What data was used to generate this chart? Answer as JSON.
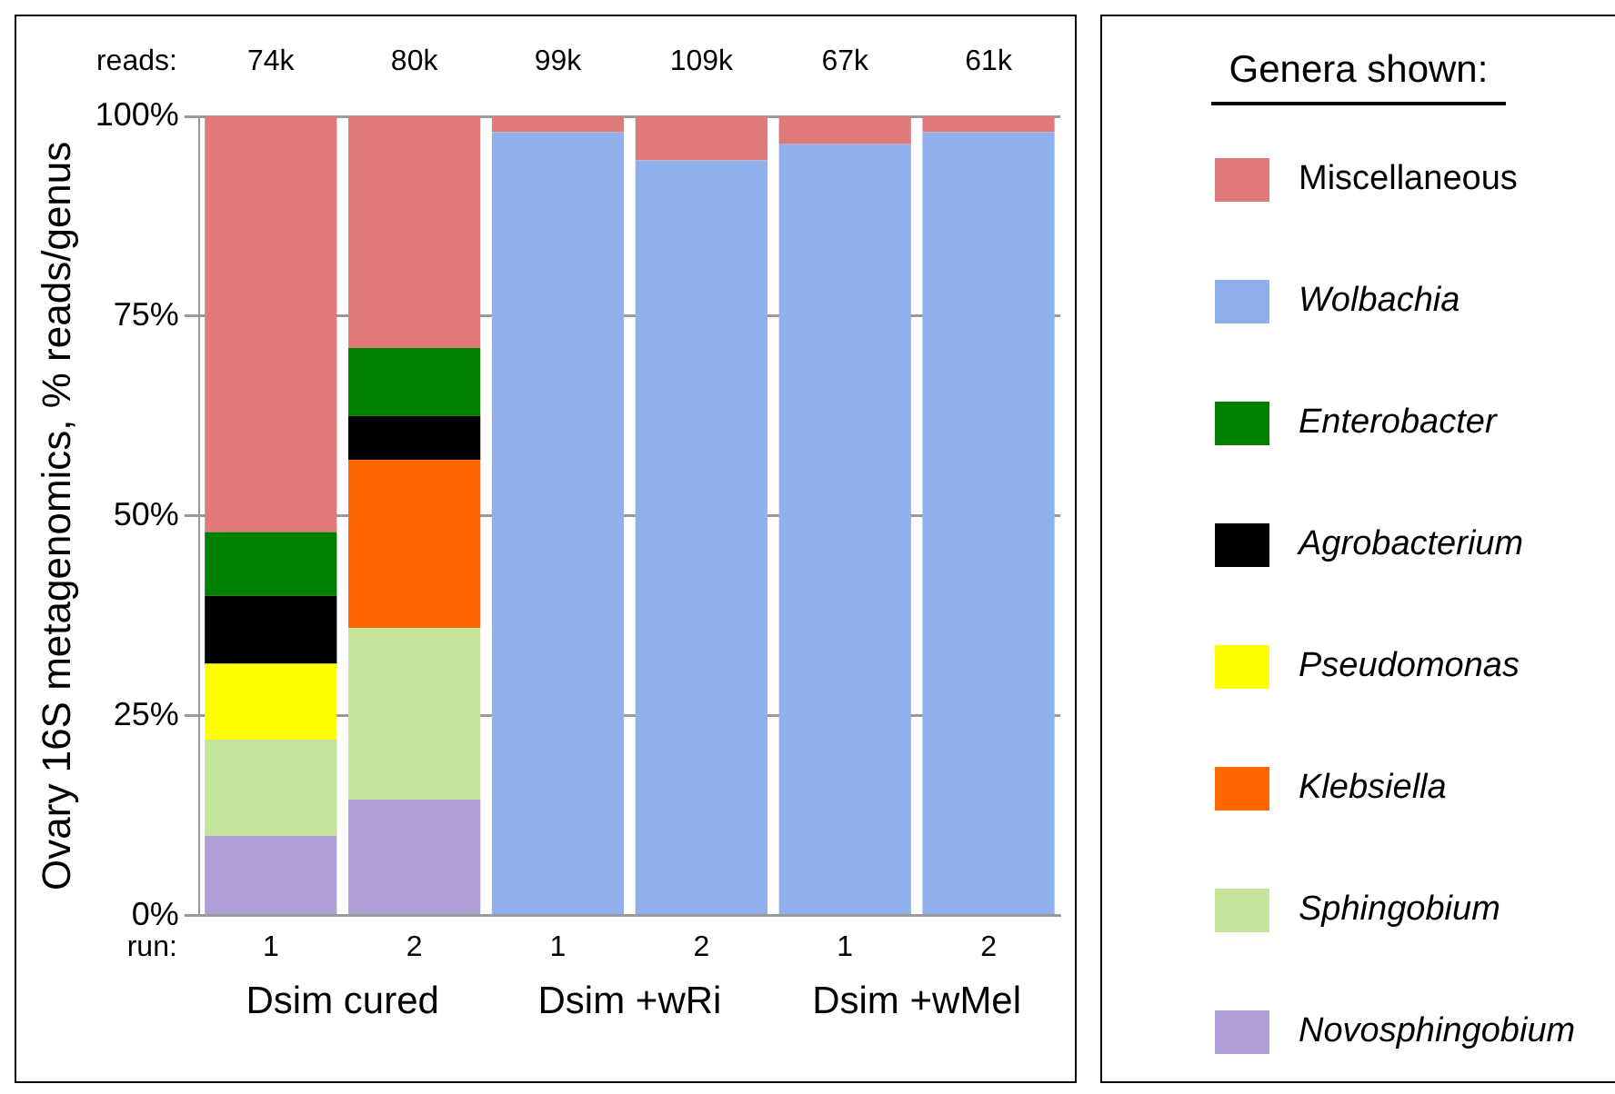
{
  "chart_data": {
    "type": "bar",
    "stacked": true,
    "ylabel": "Ovary 16S metagenomics, % reads/genus",
    "legend_title": "Genera shown:",
    "legend": "right",
    "grid": "y",
    "categories": [
      "1",
      "2",
      "1",
      "2",
      "1",
      "2"
    ],
    "series": [
      {
        "name": "Novosphingobium",
        "color": "#b09fd6",
        "values": [
          10,
          14.5,
          null,
          null,
          null,
          null
        ]
      },
      {
        "name": "Sphingobium",
        "color": "#c5e59a",
        "values": [
          12,
          21.5,
          null,
          null,
          null,
          null
        ]
      },
      {
        "name": "Klebsiella",
        "color": "#ff6600",
        "values": [
          null,
          21,
          null,
          null,
          null,
          null
        ]
      },
      {
        "name": "Pseudomonas",
        "color": "#ffff00",
        "values": [
          9.5,
          null,
          null,
          null,
          null,
          null
        ]
      },
      {
        "name": "Agrobacterium",
        "color": "#000000",
        "values": [
          8.5,
          5.5,
          null,
          null,
          null,
          null
        ]
      },
      {
        "name": "Enterobacter",
        "color": "#008000",
        "values": [
          8,
          8.5,
          null,
          null,
          null,
          null
        ]
      },
      {
        "name": "Wolbachia",
        "color": "#8fb0ea",
        "values": [
          null,
          null,
          98,
          94.5,
          96.5,
          98
        ]
      },
      {
        "name": "Miscellaneous",
        "color": "#e07a7a",
        "values": [
          52,
          29,
          2,
          5.5,
          3.5,
          2
        ]
      }
    ],
    "ylim": [
      0,
      100
    ],
    "yticks": [
      {
        "value": 0,
        "label": "0%"
      },
      {
        "value": 25,
        "label": "25%"
      },
      {
        "value": 50,
        "label": "50%"
      },
      {
        "value": 75,
        "label": "75%"
      },
      {
        "value": 100,
        "label": "100%"
      }
    ],
    "annotations": [
      "reads:",
      "74k",
      "80k",
      "99k",
      "109k",
      "67k",
      "61k",
      "run:",
      "Dsim cured",
      "Dsim +wRi",
      "Dsim +wMel"
    ]
  }
}
